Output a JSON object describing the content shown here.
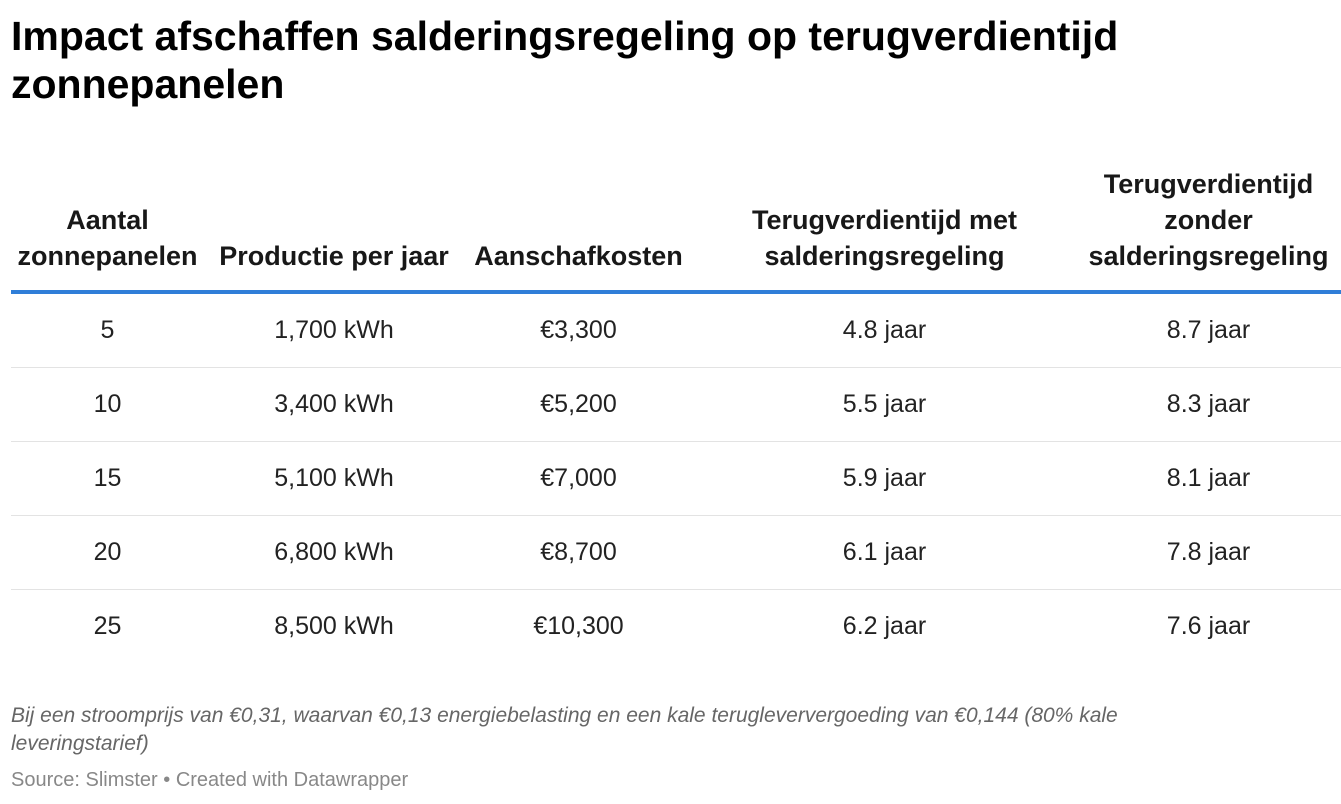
{
  "title": "Impact afschaffen salderingsregeling op terugverdientijd zonnepanelen",
  "chart_data": {
    "type": "table",
    "title": "Impact afschaffen salderingsregeling op terugverdientijd zonnepanelen",
    "columns": [
      "Aantal zonnepanelen",
      "Productie per jaar",
      "Aanschafkosten",
      "Terugverdientijd met salderingsregeling",
      "Terugverdientijd zonder salderingsregeling"
    ],
    "rows": [
      [
        "5",
        "1,700 kWh",
        "€3,300",
        "4.8 jaar",
        "8.7 jaar"
      ],
      [
        "10",
        "3,400 kWh",
        "€5,200",
        "5.5 jaar",
        "8.3 jaar"
      ],
      [
        "15",
        "5,100 kWh",
        "€7,000",
        "5.9 jaar",
        "8.1 jaar"
      ],
      [
        "20",
        "6,800 kWh",
        "€8,700",
        "6.1 jaar",
        "7.8 jaar"
      ],
      [
        "25",
        "8,500 kWh",
        "€10,300",
        "6.2 jaar",
        "7.6 jaar"
      ]
    ],
    "header_rule_color": "#2f7ed8"
  },
  "note": "Bij een stroomprijs van €0,31, waarvan €0,13 energiebelasting en een kale terugleververgoeding van €0,144 (80% kale leveringstarief)",
  "source": "Source: Slimster • Created with Datawrapper"
}
